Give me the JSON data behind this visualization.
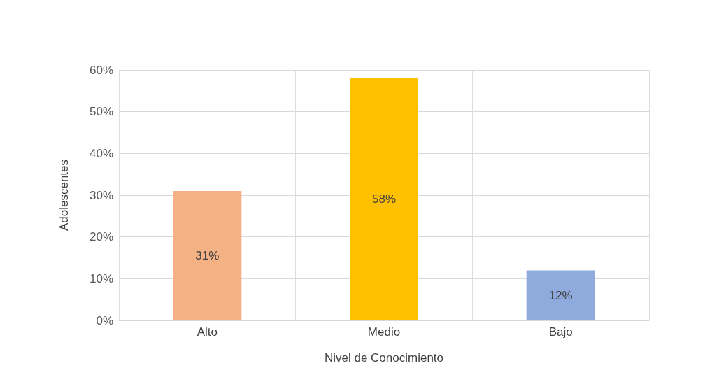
{
  "chart_data": {
    "type": "bar",
    "xlabel": "Nivel de Conocimiento",
    "ylabel": "Adolescentes",
    "categories": [
      "Alto",
      "Medio",
      "Bajo"
    ],
    "values": [
      31,
      58,
      12
    ],
    "colors": [
      "#f4b183",
      "#ffc000",
      "#8faadc"
    ],
    "value_labels": [
      "31%",
      "58%",
      "12%"
    ],
    "ylim": [
      0,
      60
    ],
    "yticks": [
      {
        "value": 0,
        "label": "0%"
      },
      {
        "value": 10,
        "label": "10%"
      },
      {
        "value": 20,
        "label": "20%"
      },
      {
        "value": 30,
        "label": "30%"
      },
      {
        "value": 40,
        "label": "40%"
      },
      {
        "value": 50,
        "label": "50%"
      },
      {
        "value": 60,
        "label": "60%"
      }
    ],
    "grid": true
  }
}
